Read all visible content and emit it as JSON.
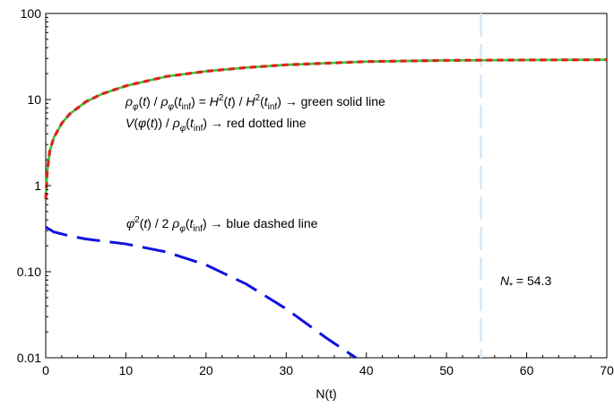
{
  "chart_data": {
    "type": "line",
    "title": "",
    "xlabel": "N(t)",
    "ylabel": "",
    "xlim": [
      0,
      70
    ],
    "ylim": [
      0.01,
      100
    ],
    "y_scale": "log",
    "grid": false,
    "x_ticks": [
      0,
      10,
      20,
      30,
      40,
      50,
      60,
      70
    ],
    "x_tick_labels": [
      "0",
      "10",
      "20",
      "30",
      "40",
      "50",
      "60",
      "70"
    ],
    "y_ticks": [
      0.01,
      0.1,
      1,
      10,
      100
    ],
    "y_tick_labels": [
      "0.01",
      "0.10",
      "1",
      "10",
      "100"
    ],
    "series": [
      {
        "color": "#33cc33",
        "style": "solid",
        "x": [
          0,
          0.2,
          0.5,
          1,
          2,
          3,
          5,
          7,
          10,
          15,
          20,
          25,
          30,
          40,
          50,
          60,
          70
        ],
        "y": [
          0.7,
          1.5,
          2.5,
          3.6,
          5.3,
          6.8,
          9.4,
          11.6,
          14.4,
          18.5,
          21.3,
          23.5,
          25.3,
          27.6,
          28.5,
          28.8,
          29.0
        ]
      },
      {
        "color": "#dd2222",
        "style": "dotted",
        "x": [
          0,
          0.2,
          0.5,
          1,
          2,
          3,
          5,
          7,
          10,
          15,
          20,
          25,
          30,
          40,
          50,
          60,
          70
        ],
        "y": [
          0.7,
          1.5,
          2.5,
          3.6,
          5.3,
          6.8,
          9.4,
          11.6,
          14.4,
          18.5,
          21.3,
          23.5,
          25.3,
          27.6,
          28.5,
          28.8,
          29.0
        ]
      },
      {
        "color": "#1111dd",
        "style": "dashed",
        "x": [
          0,
          1,
          3,
          5,
          10,
          15,
          20,
          25,
          30,
          35,
          38.7
        ],
        "y": [
          0.33,
          0.29,
          0.26,
          0.24,
          0.21,
          0.17,
          0.12,
          0.072,
          0.037,
          0.017,
          0.01
        ]
      }
    ],
    "vline": {
      "x": 54.3,
      "color": "#d4e8f7",
      "style": "dashed"
    },
    "annotations": {
      "line1_lhs": "ρφ(t) / ρφ(tinf) = H²(t) / H²(tinf)",
      "line1_rhs": "→ green solid line",
      "line2_lhs": "V(φ(t)) / ρφ(tinf)",
      "line2_rhs": "→ red dotted line",
      "line3_lhs": "φ̇²(t) / 2 ρφ(tinf)",
      "line3_rhs": "→ blue dashed line",
      "nstar_label": "N* = 54.3"
    }
  }
}
